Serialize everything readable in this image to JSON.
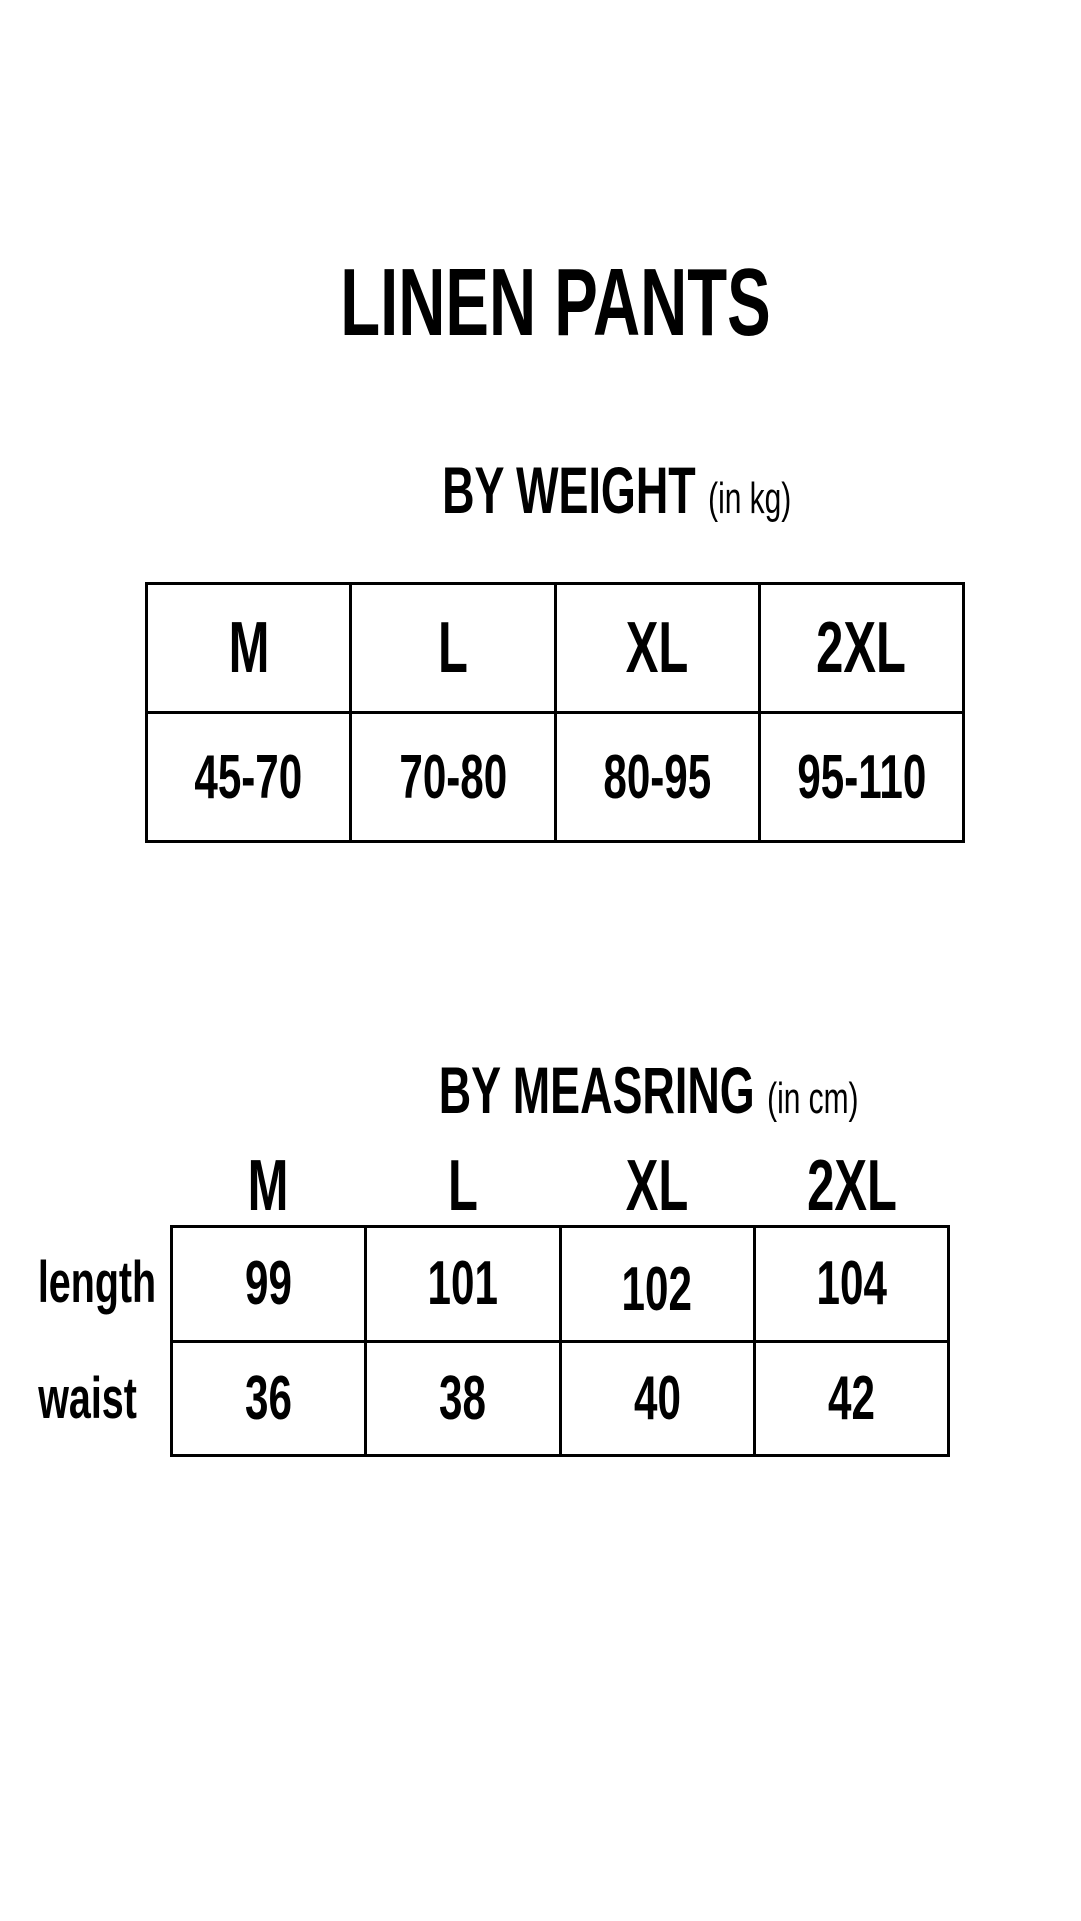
{
  "title": "LINEN PANTS",
  "by_weight": {
    "heading": "BY WEIGHT",
    "unit": "(in kg)",
    "sizes": [
      "M",
      "L",
      "XL",
      "2XL"
    ],
    "ranges": [
      "45-70",
      "70-80",
      "80-95",
      "95-110"
    ]
  },
  "by_measuring": {
    "heading": "BY MEASRING",
    "unit": "(in cm)",
    "sizes": [
      "M",
      "L",
      "XL",
      "2XL"
    ],
    "rows": [
      {
        "label": "length",
        "values": [
          "99",
          "101",
          "102",
          "104"
        ]
      },
      {
        "label": "waist",
        "values": [
          "36",
          "38",
          "40",
          "42"
        ]
      }
    ]
  }
}
